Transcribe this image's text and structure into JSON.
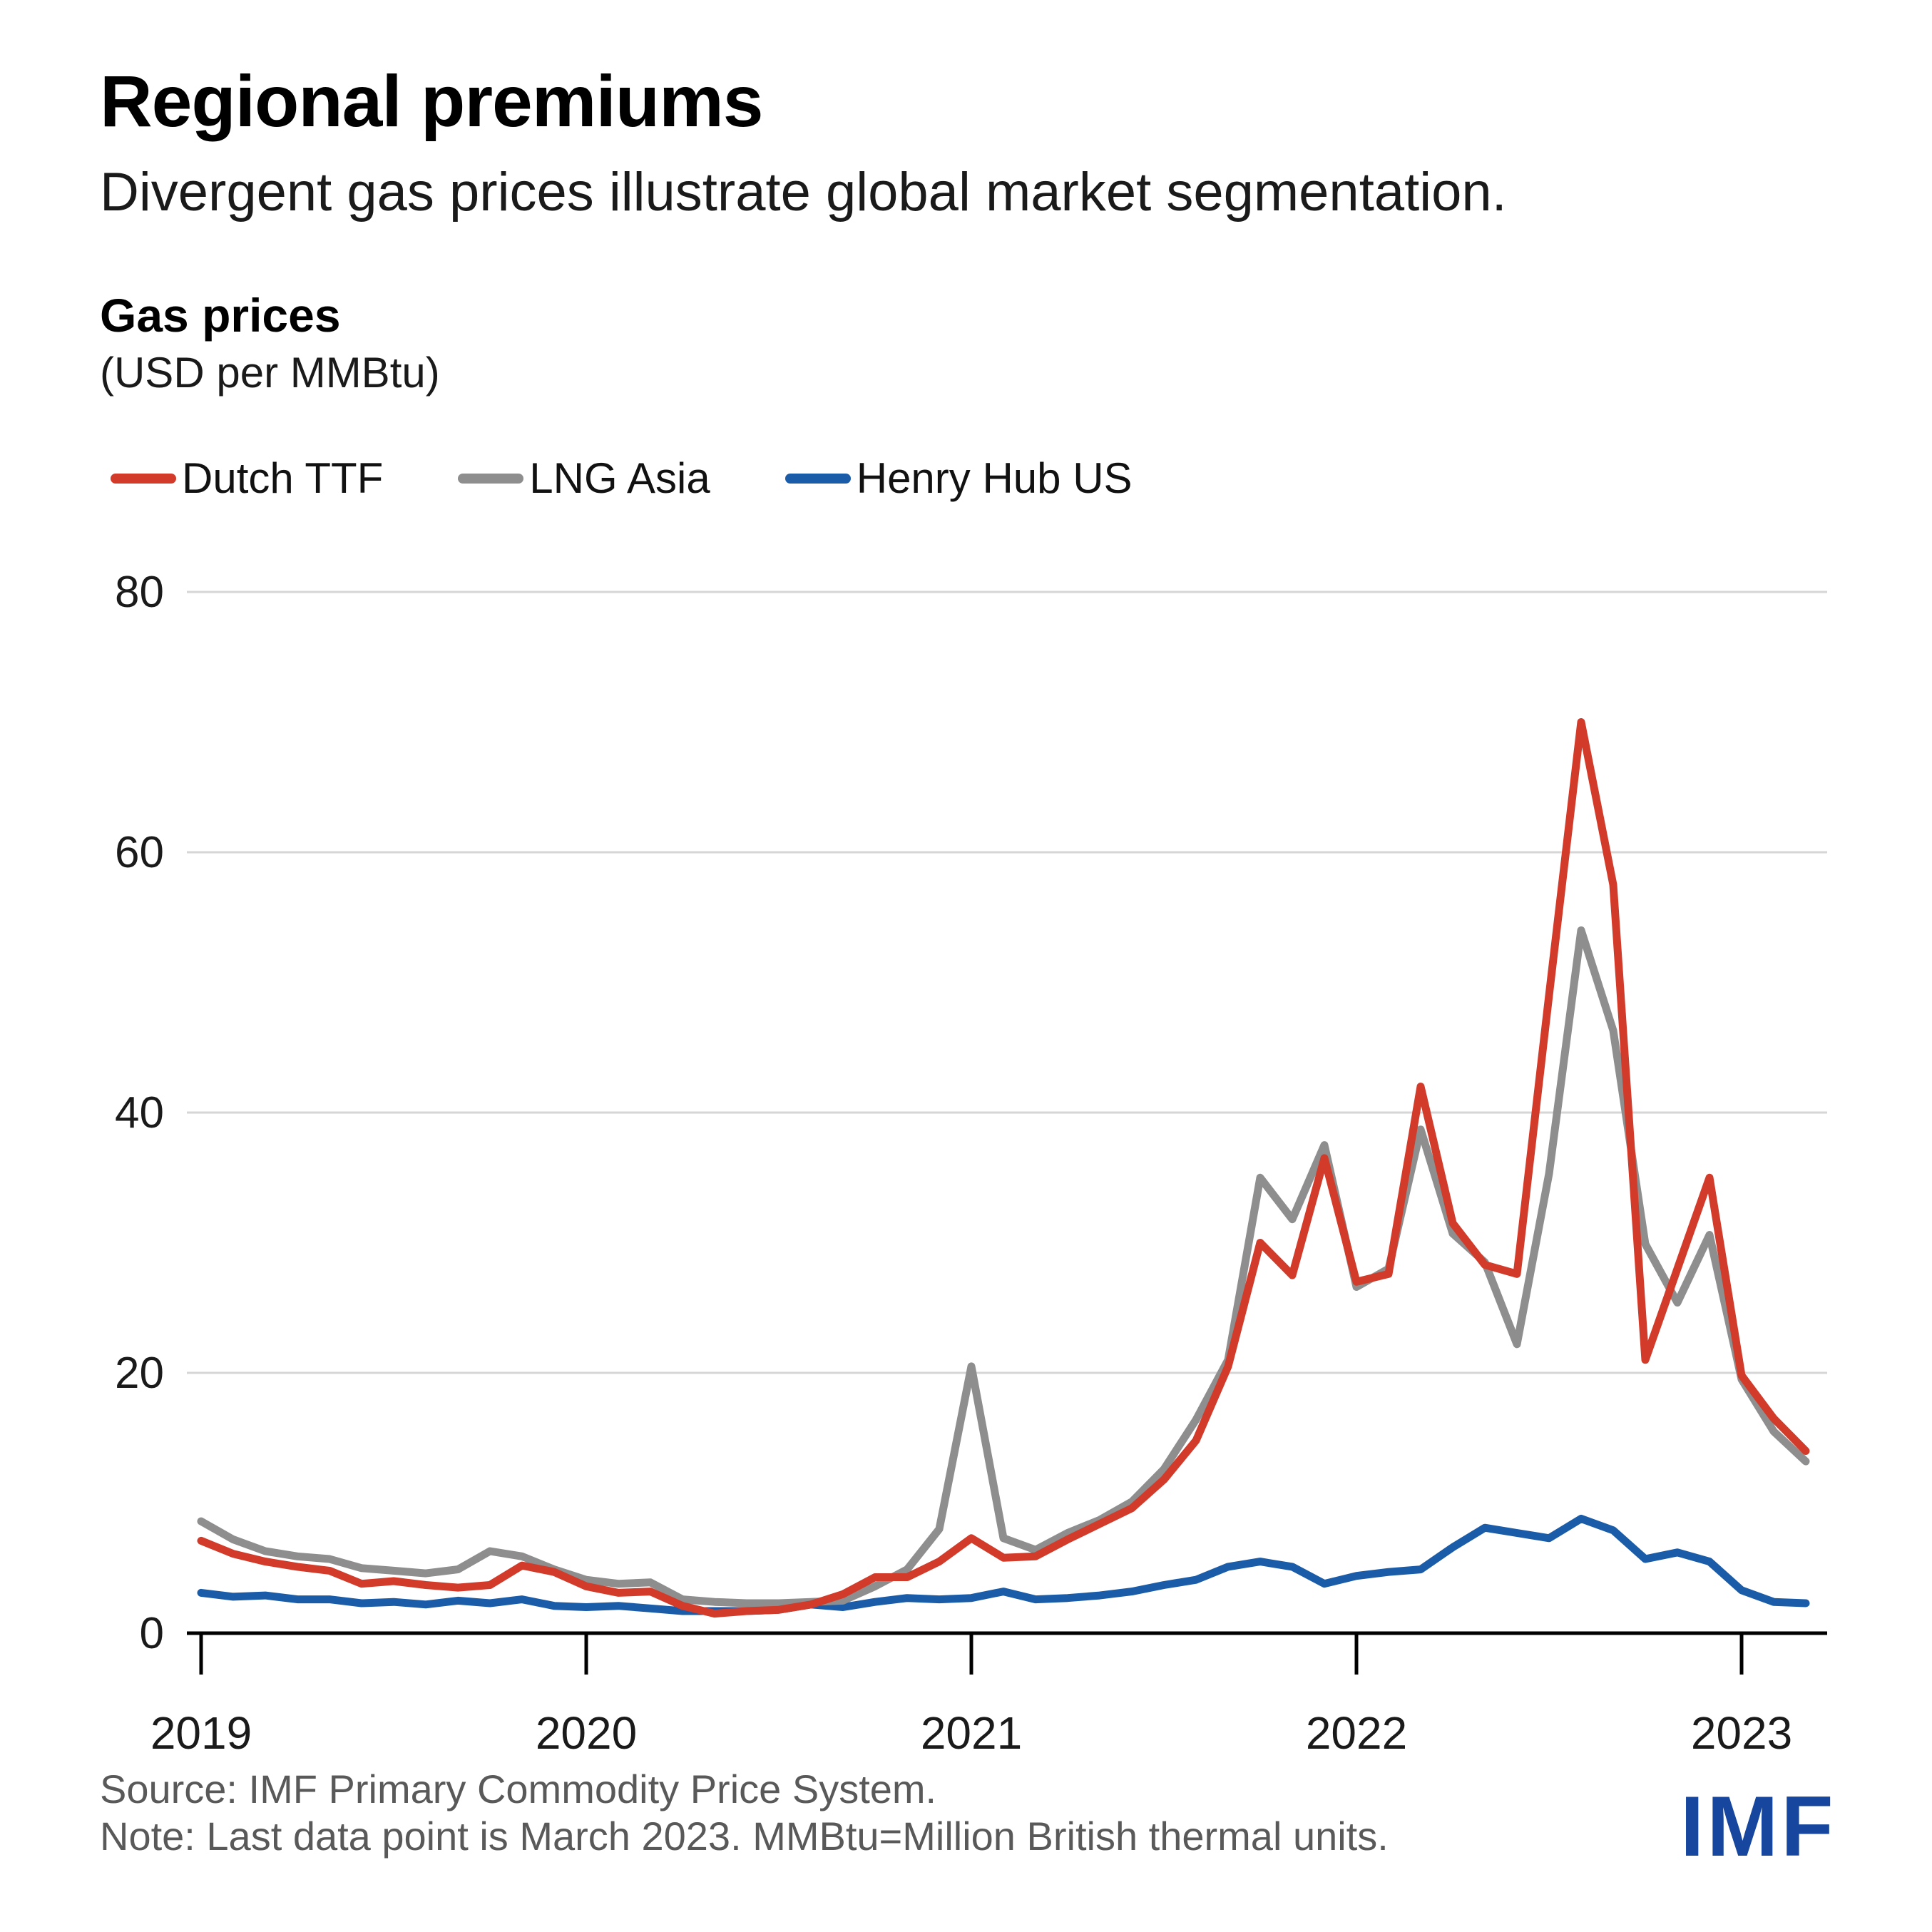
{
  "header": {
    "title": "Regional premiums",
    "subtitle": "Divergent gas prices illustrate global market segmentation."
  },
  "panel": {
    "heading": "Gas prices",
    "unit": "(USD per MMBtu)"
  },
  "legend": [
    {
      "label": "Dutch TTF",
      "color": "#d23a2a"
    },
    {
      "label": "LNG Asia",
      "color": "#8e8e8e"
    },
    {
      "label": "Henry Hub US",
      "color": "#1b5ca8"
    }
  ],
  "chart_data": {
    "type": "line",
    "title": "Gas prices",
    "xlabel": "",
    "ylabel": "USD per MMBtu",
    "ylim": [
      0,
      80
    ],
    "y_ticks": [
      0,
      20,
      40,
      60,
      80
    ],
    "x_tick_labels": [
      "2019",
      "2020",
      "2021",
      "2022",
      "2023"
    ],
    "grid": "horizontal",
    "grid_color": "#d6d6d6",
    "axis_color": "#000000",
    "tick_label_color": "#1a1a1a",
    "legend_position": "top",
    "x": [
      "2019-01",
      "2019-02",
      "2019-03",
      "2019-04",
      "2019-05",
      "2019-06",
      "2019-07",
      "2019-08",
      "2019-09",
      "2019-10",
      "2019-11",
      "2019-12",
      "2020-01",
      "2020-02",
      "2020-03",
      "2020-04",
      "2020-05",
      "2020-06",
      "2020-07",
      "2020-08",
      "2020-09",
      "2020-10",
      "2020-11",
      "2020-12",
      "2021-01",
      "2021-02",
      "2021-03",
      "2021-04",
      "2021-05",
      "2021-06",
      "2021-07",
      "2021-08",
      "2021-09",
      "2021-10",
      "2021-11",
      "2021-12",
      "2022-01",
      "2022-02",
      "2022-03",
      "2022-04",
      "2022-05",
      "2022-06",
      "2022-07",
      "2022-08",
      "2022-09",
      "2022-10",
      "2022-11",
      "2022-12",
      "2023-01",
      "2023-02",
      "2023-03"
    ],
    "series": [
      {
        "name": "Dutch TTF",
        "color": "#d23a2a",
        "values": [
          7.1,
          6.1,
          5.5,
          5.1,
          4.8,
          3.8,
          4.0,
          3.7,
          3.5,
          3.7,
          5.2,
          4.7,
          3.6,
          3.1,
          3.2,
          2.1,
          1.5,
          1.7,
          1.8,
          2.2,
          3.0,
          4.3,
          4.3,
          5.5,
          7.3,
          5.8,
          5.9,
          7.2,
          8.4,
          9.6,
          11.8,
          14.8,
          20.5,
          30.0,
          27.5,
          36.5,
          27.0,
          27.6,
          42.0,
          31.5,
          28.3,
          27.6,
          49.0,
          70.0,
          57.5,
          21.0,
          28.0,
          35.0,
          19.8,
          16.5,
          14.0
        ]
      },
      {
        "name": "LNG Asia",
        "color": "#8e8e8e",
        "values": [
          8.6,
          7.2,
          6.3,
          5.9,
          5.7,
          5.0,
          4.8,
          4.6,
          4.9,
          6.3,
          5.9,
          4.9,
          4.1,
          3.8,
          3.9,
          2.6,
          2.4,
          2.3,
          2.3,
          2.4,
          2.5,
          3.6,
          4.9,
          8.0,
          20.5,
          7.3,
          6.4,
          7.7,
          8.7,
          10.1,
          12.6,
          16.4,
          21.0,
          35.0,
          31.8,
          37.5,
          26.6,
          28.0,
          38.7,
          30.7,
          28.5,
          22.2,
          35.3,
          54.0,
          46.3,
          29.9,
          25.4,
          30.6,
          19.5,
          15.5,
          13.2
        ]
      },
      {
        "name": "Henry Hub US",
        "color": "#1b5ca8",
        "values": [
          3.1,
          2.8,
          2.9,
          2.6,
          2.6,
          2.3,
          2.4,
          2.2,
          2.5,
          2.3,
          2.6,
          2.1,
          2.0,
          2.1,
          1.9,
          1.7,
          1.7,
          1.7,
          1.8,
          2.2,
          2.0,
          2.4,
          2.7,
          2.6,
          2.7,
          3.2,
          2.6,
          2.7,
          2.9,
          3.2,
          3.7,
          4.1,
          5.1,
          5.5,
          5.1,
          3.8,
          4.4,
          4.7,
          4.9,
          6.6,
          8.1,
          7.7,
          7.3,
          8.8,
          7.9,
          5.7,
          6.2,
          5.5,
          3.3,
          2.4,
          2.3
        ]
      }
    ]
  },
  "footer": {
    "source": "Source: IMF Primary Commodity Price System.",
    "note": "Note: Last data point is March 2023. MMBtu=Million British thermal units.",
    "logo": "IMF"
  }
}
